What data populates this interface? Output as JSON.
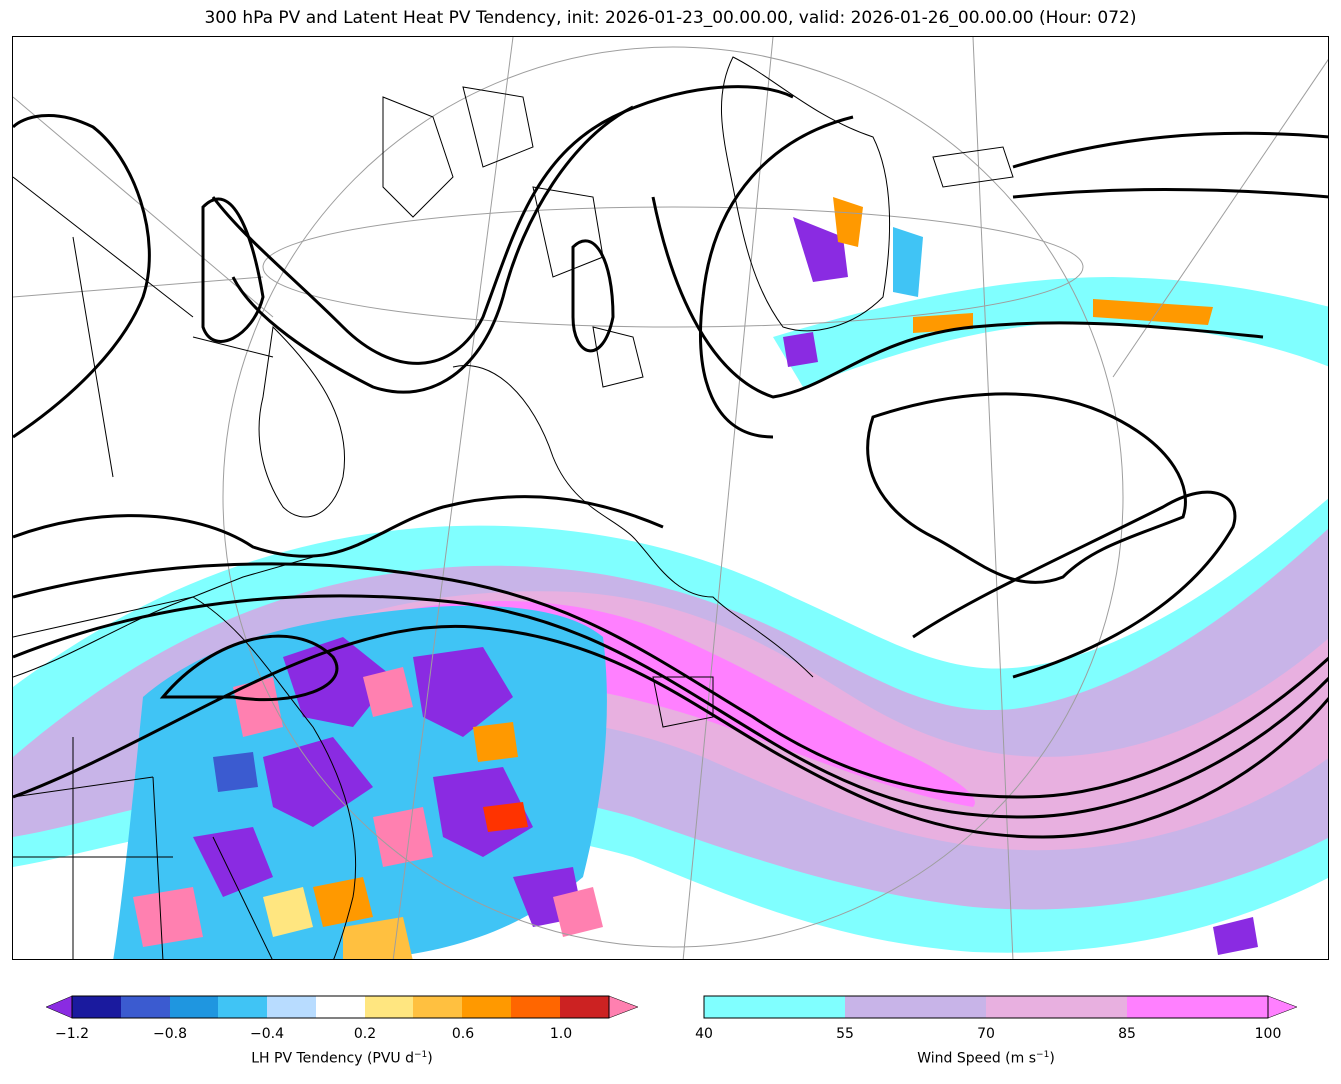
{
  "title": "300 hPa PV and Latent Heat PV Tendency, init: 2026-01-23_00.00.00, valid: 2026-01-26_00.00.00 (Hour: 072)",
  "colorbars": {
    "lh": {
      "label_text": "LH PV Tendency (PVU d",
      "label_exp": "−1",
      "label_close": ")",
      "ticks": [
        "−1.2",
        "−0.8",
        "−0.4",
        "0.2",
        "0.6",
        "1.0"
      ],
      "colors": [
        "#8a2be2",
        "#1a1a9e",
        "#3b5bd0",
        "#1f96e0",
        "#40c4f5",
        "#b8dcff",
        "#ffffff",
        "#ffe680",
        "#ffc040",
        "#ff9900",
        "#ff6600",
        "#ff3300",
        "#cc2222",
        "#ff80b0"
      ]
    },
    "wind": {
      "label_text": "Wind Speed (m s",
      "label_exp": "−1",
      "label_close": ")",
      "ticks": [
        "40",
        "55",
        "70",
        "85",
        "100"
      ],
      "colors": [
        "#80ffff",
        "#c8b4e8",
        "#e8b0e0",
        "#ff80ff"
      ]
    }
  },
  "map": {
    "jet_colors": {
      "c40": "#80ffff",
      "c55": "#c8b4e8",
      "c70": "#e8b0e0",
      "c85": "#ff80ff"
    },
    "contour_color": "#000000",
    "grid_color": "#9e9e9e"
  }
}
